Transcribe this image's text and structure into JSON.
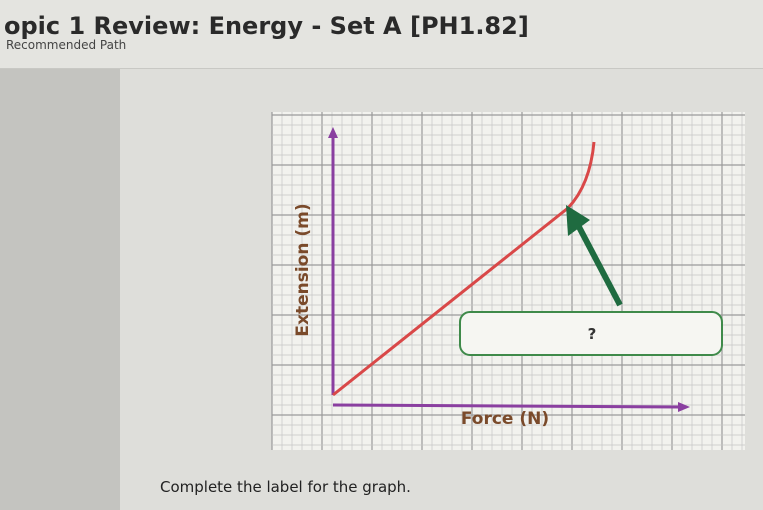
{
  "header": {
    "title": "opic 1 Review: Energy - Set A [PH1.82]",
    "subtitle": "Recommended Path"
  },
  "graph": {
    "y_axis_label": "Extension (m)",
    "x_axis_label": "Force (N)",
    "answer_box": "?"
  },
  "prompt": "Complete the label for the graph."
}
